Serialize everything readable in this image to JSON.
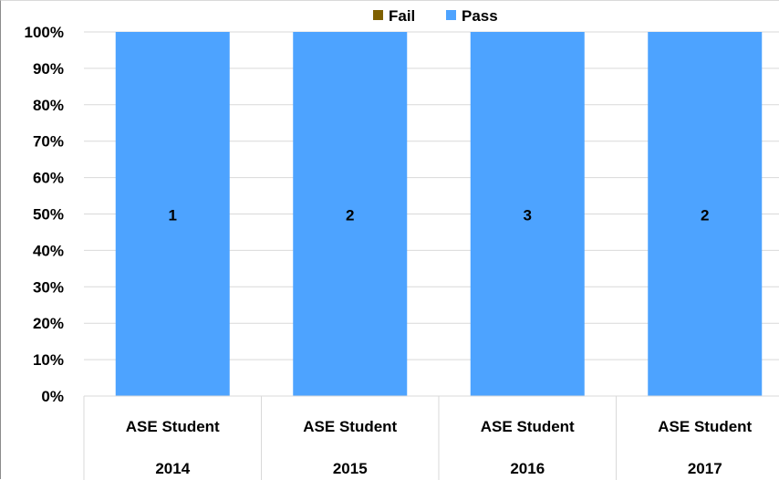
{
  "chart_data": {
    "type": "bar",
    "stacked": "percent",
    "categories": [
      [
        "ASE Student",
        "2014"
      ],
      [
        "ASE Student",
        "2015"
      ],
      [
        "ASE Student",
        "2016"
      ],
      [
        "ASE Student",
        "2017"
      ]
    ],
    "series": [
      {
        "name": "Fail",
        "color": "#7f6000",
        "values": [
          0,
          0,
          0,
          0
        ]
      },
      {
        "name": "Pass",
        "color": "#4da3ff",
        "values": [
          1,
          2,
          3,
          2
        ]
      }
    ],
    "data_labels": [
      "1",
      "2",
      "3",
      "2"
    ],
    "ylim": [
      0,
      100
    ],
    "yticks": [
      "0%",
      "10%",
      "20%",
      "30%",
      "40%",
      "50%",
      "60%",
      "70%",
      "80%",
      "90%",
      "100%"
    ],
    "grid": true,
    "legend_position": "top"
  }
}
